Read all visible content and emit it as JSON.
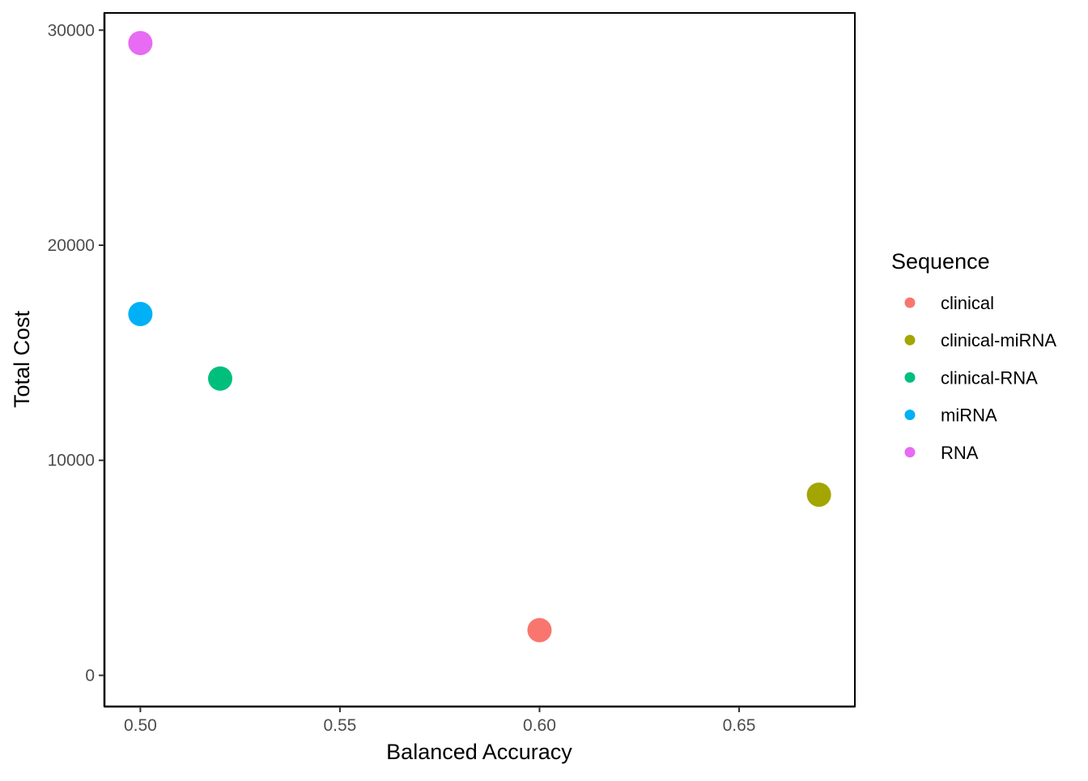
{
  "chart_data": {
    "type": "scatter",
    "title": "",
    "xlabel": "Balanced Accuracy",
    "ylabel": "Total Cost",
    "xlim": [
      0.491,
      0.679
    ],
    "ylim": [
      -1450,
      30800
    ],
    "xticks": [
      0.5,
      0.55,
      0.6,
      0.65
    ],
    "xtick_labels": [
      "0.50",
      "0.55",
      "0.60",
      "0.65"
    ],
    "yticks": [
      0,
      10000,
      20000,
      30000
    ],
    "ytick_labels": [
      "0",
      "10000",
      "20000",
      "30000"
    ],
    "grid": false,
    "legend": {
      "title": "Sequence",
      "placement": "right",
      "entries": [
        {
          "label": "clinical",
          "color": "#F8766D"
        },
        {
          "label": "clinical-miRNA",
          "color": "#A3A500"
        },
        {
          "label": "clinical-RNA",
          "color": "#00BF7D"
        },
        {
          "label": "miRNA",
          "color": "#00B0F6"
        },
        {
          "label": "RNA",
          "color": "#E76BF3"
        }
      ]
    },
    "series": [
      {
        "name": "clinical",
        "color": "#F8766D",
        "points": [
          {
            "x": 0.6,
            "y": 2100
          }
        ]
      },
      {
        "name": "clinical-miRNA",
        "color": "#A3A500",
        "points": [
          {
            "x": 0.67,
            "y": 8400
          }
        ]
      },
      {
        "name": "clinical-RNA",
        "color": "#00BF7D",
        "points": [
          {
            "x": 0.52,
            "y": 13800
          }
        ]
      },
      {
        "name": "miRNA",
        "color": "#00B0F6",
        "points": [
          {
            "x": 0.5,
            "y": 16800
          }
        ]
      },
      {
        "name": "RNA",
        "color": "#E76BF3",
        "points": [
          {
            "x": 0.5,
            "y": 29400
          }
        ]
      }
    ]
  }
}
